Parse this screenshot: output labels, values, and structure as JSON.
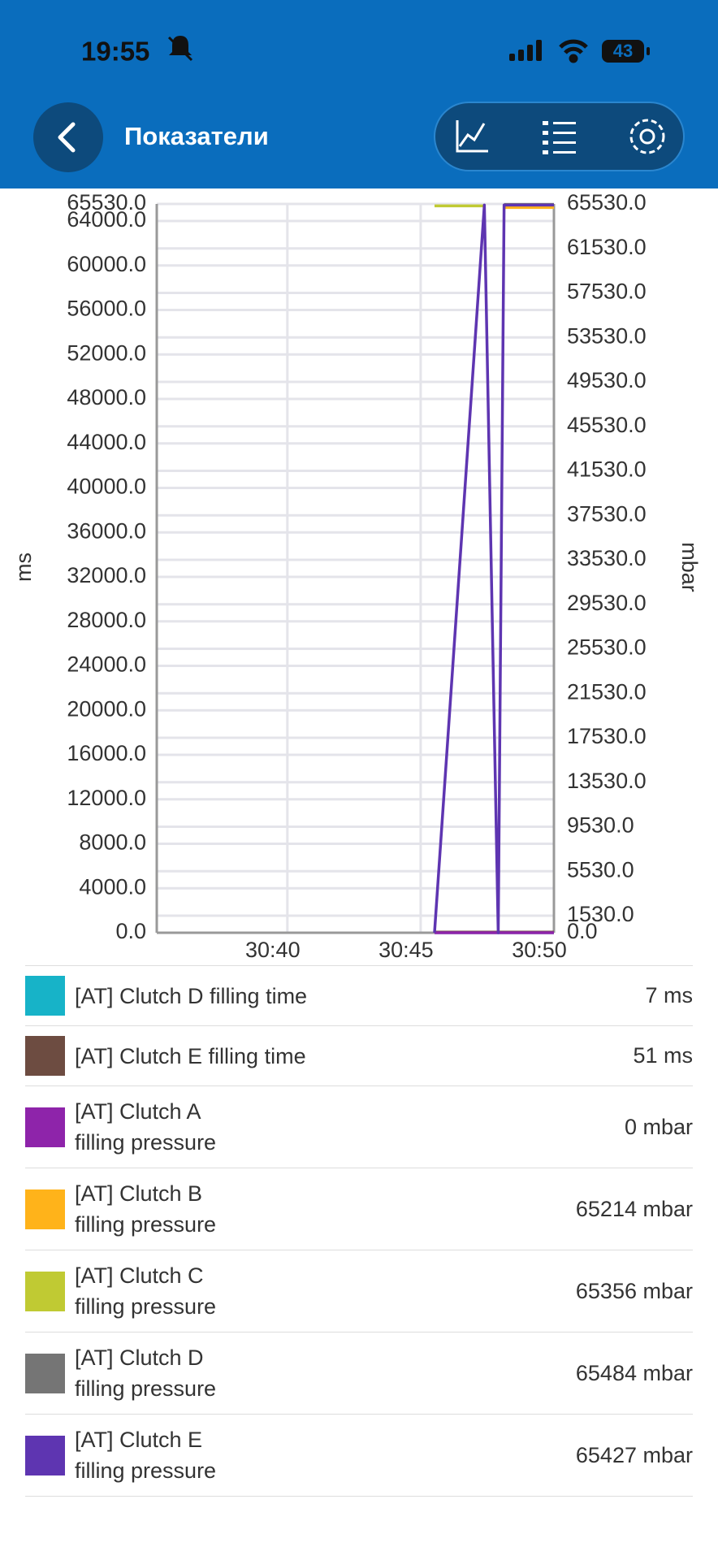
{
  "status_bar": {
    "time": "19:55",
    "battery": "43"
  },
  "header": {
    "title": "Показатели"
  },
  "chart_data": {
    "type": "line",
    "y_label": "ms",
    "y2_label": "mbar",
    "grid": true,
    "xlim": [
      1835.1,
      1850
    ],
    "xticks": [
      {
        "value": 1840,
        "label": "30:40"
      },
      {
        "value": 1845,
        "label": "30:45"
      },
      {
        "value": 1850,
        "label": "30:50"
      }
    ],
    "ylim": [
      0,
      65530
    ],
    "yticks": [
      {
        "value": 0,
        "label": "0.0"
      },
      {
        "value": 4000,
        "label": "4000.0"
      },
      {
        "value": 8000,
        "label": "8000.0"
      },
      {
        "value": 12000,
        "label": "12000.0"
      },
      {
        "value": 16000,
        "label": "16000.0"
      },
      {
        "value": 20000,
        "label": "20000.0"
      },
      {
        "value": 24000,
        "label": "24000.0"
      },
      {
        "value": 28000,
        "label": "28000.0"
      },
      {
        "value": 32000,
        "label": "32000.0"
      },
      {
        "value": 36000,
        "label": "36000.0"
      },
      {
        "value": 40000,
        "label": "40000.0"
      },
      {
        "value": 44000,
        "label": "44000.0"
      },
      {
        "value": 48000,
        "label": "48000.0"
      },
      {
        "value": 52000,
        "label": "52000.0"
      },
      {
        "value": 56000,
        "label": "56000.0"
      },
      {
        "value": 60000,
        "label": "60000.0"
      },
      {
        "value": 64000,
        "label": "64000.0"
      },
      {
        "value": 65530,
        "label": "65530.0"
      }
    ],
    "y2lim": [
      0,
      65530
    ],
    "y2ticks": [
      {
        "value": 0,
        "label": "0.0"
      },
      {
        "value": 1530,
        "label": "1530.0"
      },
      {
        "value": 5530,
        "label": "5530.0"
      },
      {
        "value": 9530,
        "label": "9530.0"
      },
      {
        "value": 13530,
        "label": "13530.0"
      },
      {
        "value": 17530,
        "label": "17530.0"
      },
      {
        "value": 21530,
        "label": "21530.0"
      },
      {
        "value": 25530,
        "label": "25530.0"
      },
      {
        "value": 29530,
        "label": "29530.0"
      },
      {
        "value": 33530,
        "label": "33530.0"
      },
      {
        "value": 37530,
        "label": "37530.0"
      },
      {
        "value": 41530,
        "label": "41530.0"
      },
      {
        "value": 45530,
        "label": "45530.0"
      },
      {
        "value": 49530,
        "label": "49530.0"
      },
      {
        "value": 53530,
        "label": "53530.0"
      },
      {
        "value": 57530,
        "label": "57530.0"
      },
      {
        "value": 61530,
        "label": "61530.0"
      },
      {
        "value": 65530,
        "label": "65530.0"
      }
    ],
    "series": [
      {
        "name": "[AT] Clutch D filling time",
        "color": "#17b3c8",
        "current": "7 ms",
        "x": [
          1845.52,
          1850
        ],
        "values": [
          7,
          7
        ]
      },
      {
        "name": "[AT] Clutch E filling time",
        "color": "#6d4c41",
        "current": "51 ms",
        "x": [
          1845.52,
          1850
        ],
        "values": [
          51,
          51
        ]
      },
      {
        "name": "[AT] Clutch A\nfilling pressure",
        "color": "#8e24aa",
        "current": "0 mbar",
        "axis": "y2",
        "x": [
          1845.52,
          1850
        ],
        "values": [
          0,
          0
        ]
      },
      {
        "name": "[AT] Clutch B\nfilling pressure",
        "color": "#ffb31a",
        "current": "65214 mbar",
        "axis": "y2",
        "x": [
          1848.13,
          1850
        ],
        "values": [
          65214,
          65214
        ]
      },
      {
        "name": "[AT] Clutch C\nfilling pressure",
        "color": "#c0ca33",
        "current": "65356 mbar",
        "axis": "y2",
        "x": [
          1845.52,
          1847.39
        ],
        "values": [
          65356,
          65356
        ]
      },
      {
        "name": "[AT] Clutch D\nfilling pressure",
        "color": "#757575",
        "current": "65484 mbar",
        "axis": "y2",
        "x": [
          1848.13,
          1850
        ],
        "values": [
          65484,
          65484
        ]
      },
      {
        "name": "[AT] Clutch E\nfilling pressure",
        "color": "#5e35b1",
        "current": "65427 mbar",
        "axis": "y2",
        "x": [
          1845.52,
          1847.39,
          1847.91,
          1848.13,
          1850
        ],
        "values": [
          0,
          65427,
          0,
          65427,
          65427
        ]
      }
    ]
  }
}
